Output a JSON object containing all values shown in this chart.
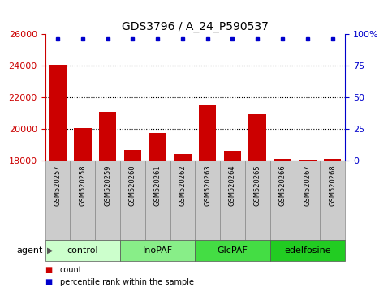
{
  "title": "GDS3796 / A_24_P590537",
  "samples": [
    "GSM520257",
    "GSM520258",
    "GSM520259",
    "GSM520260",
    "GSM520261",
    "GSM520262",
    "GSM520263",
    "GSM520264",
    "GSM520265",
    "GSM520266",
    "GSM520267",
    "GSM520268"
  ],
  "bar_values": [
    24050,
    20050,
    21100,
    18700,
    19750,
    18400,
    21550,
    18650,
    20950,
    18100,
    18050,
    18100
  ],
  "bar_color": "#cc0000",
  "dot_color": "#0000cc",
  "ylim_left": [
    18000,
    26000
  ],
  "ylim_right": [
    0,
    100
  ],
  "yticks_left": [
    18000,
    20000,
    22000,
    24000,
    26000
  ],
  "yticks_right": [
    0,
    25,
    50,
    75,
    100
  ],
  "yticklabels_right": [
    "0",
    "25",
    "50",
    "75",
    "100%"
  ],
  "grid_values": [
    20000,
    22000,
    24000
  ],
  "agent_label": "agent",
  "groups": [
    {
      "label": "control",
      "indices": [
        0,
        1,
        2
      ],
      "color": "#ccffcc"
    },
    {
      "label": "InoPAF",
      "indices": [
        3,
        4,
        5
      ],
      "color": "#88ee88"
    },
    {
      "label": "GlcPAF",
      "indices": [
        6,
        7,
        8
      ],
      "color": "#44dd44"
    },
    {
      "label": "edelfosine",
      "indices": [
        9,
        10,
        11
      ],
      "color": "#22cc22"
    }
  ],
  "bar_width": 0.7,
  "tick_color_left": "#cc0000",
  "tick_color_right": "#0000cc",
  "sample_box_color": "#cccccc",
  "sample_box_edge": "#888888",
  "title_fontsize": 10,
  "axis_label_fontsize": 8,
  "sample_label_fontsize": 6,
  "group_label_fontsize": 8,
  "legend_fontsize": 7,
  "agent_fontsize": 8
}
